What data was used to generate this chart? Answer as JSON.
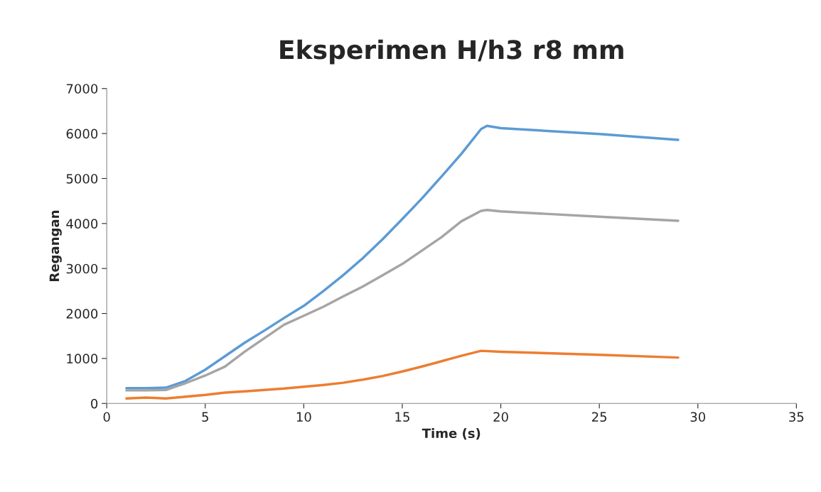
{
  "chart_data": {
    "type": "line",
    "title": "Eksperimen H/h3 r8 mm",
    "xlabel": "Time (s)",
    "ylabel": "Regangan",
    "xlim": [
      0,
      35
    ],
    "xticks": [
      0,
      5,
      10,
      15,
      20,
      25,
      30,
      35
    ],
    "ylim": [
      0,
      7000
    ],
    "yticks": [
      0,
      1000,
      2000,
      3000,
      4000,
      5000,
      6000,
      7000
    ],
    "grid": false,
    "marker": "none",
    "line_style": "solid",
    "series": [
      {
        "color": "#5b9bd5",
        "x": [
          1,
          2,
          3,
          4,
          5,
          6,
          7,
          8,
          9,
          10,
          11,
          12,
          13,
          14,
          15,
          16,
          17,
          18,
          19,
          19.3,
          20,
          25,
          29
        ],
        "values": [
          340,
          340,
          350,
          500,
          750,
          1050,
          1350,
          1620,
          1900,
          2170,
          2500,
          2850,
          3230,
          3650,
          4100,
          4560,
          5050,
          5550,
          6100,
          6170,
          6120,
          5990,
          5860
        ]
      },
      {
        "color": "#a5a5a5",
        "x": [
          1,
          2,
          3,
          4,
          5,
          6,
          7,
          8,
          9,
          10,
          11,
          12,
          13,
          14,
          15,
          16,
          17,
          18,
          19,
          19.3,
          20,
          25,
          29
        ],
        "values": [
          290,
          290,
          300,
          450,
          620,
          820,
          1150,
          1450,
          1750,
          1950,
          2150,
          2380,
          2600,
          2850,
          3100,
          3400,
          3700,
          4050,
          4280,
          4300,
          4270,
          4150,
          4060
        ]
      },
      {
        "color": "#ed7d31",
        "x": [
          1,
          2,
          3,
          4,
          5,
          6,
          7,
          8,
          9,
          10,
          11,
          12,
          13,
          14,
          15,
          16,
          17,
          18,
          19,
          20,
          25,
          29
        ],
        "values": [
          110,
          130,
          110,
          150,
          190,
          240,
          270,
          300,
          330,
          370,
          410,
          460,
          530,
          610,
          710,
          820,
          940,
          1060,
          1170,
          1150,
          1080,
          1020
        ]
      }
    ]
  }
}
